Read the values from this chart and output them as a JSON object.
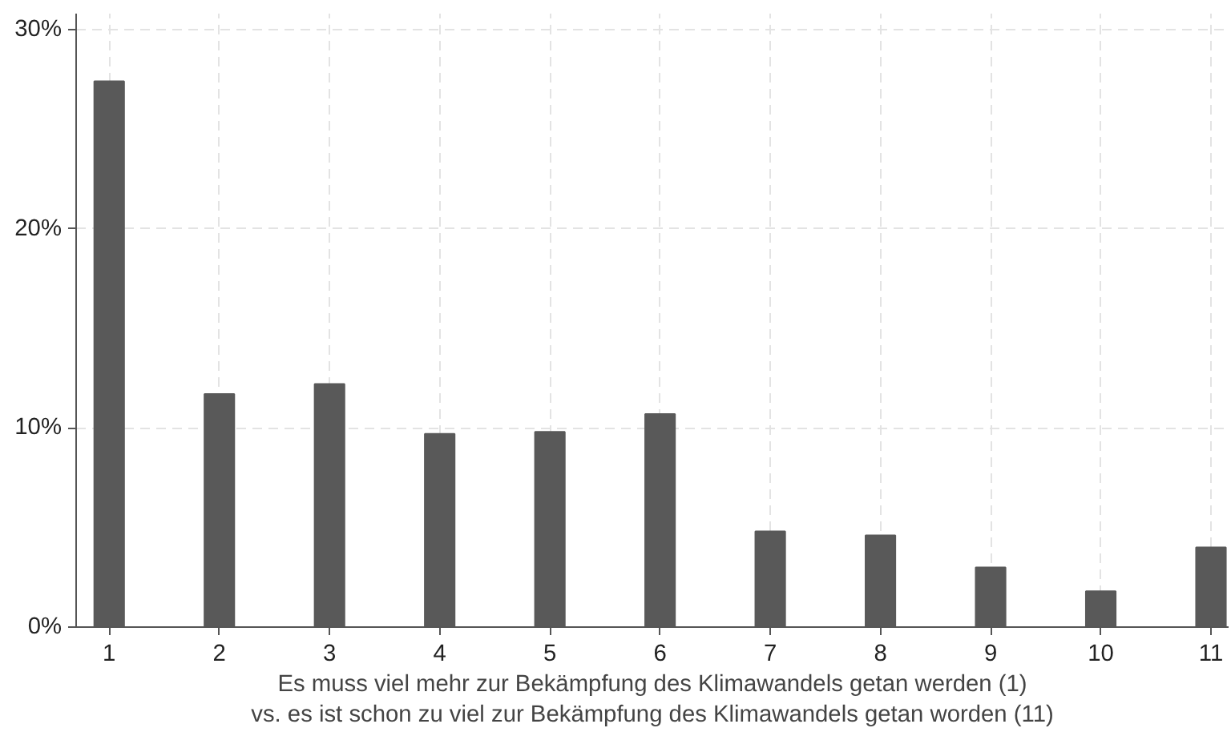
{
  "chart_data": {
    "type": "bar",
    "x": [
      1,
      2,
      3,
      4,
      5,
      6,
      7,
      8,
      9,
      10,
      11
    ],
    "values": [
      27.4,
      11.7,
      12.2,
      9.7,
      9.8,
      10.7,
      4.8,
      4.6,
      3.0,
      1.8,
      4.0
    ],
    "color": "#595959",
    "xlabel": "Es muss viel mehr zur Bekämpfung des Klimawandels getan werden (1)\nvs. es ist schon zu viel zur Bekämpfung des Klimawandels getan worden (11)",
    "xlim": [
      0.7,
      11.16
    ],
    "xticks": [
      1,
      2,
      3,
      4,
      5,
      6,
      7,
      8,
      9,
      10,
      11
    ],
    "ylim": [
      0,
      30.8
    ],
    "yticks": [
      {
        "value": 0,
        "label": "0%"
      },
      {
        "value": 10,
        "label": "10%"
      },
      {
        "value": 20,
        "label": "20%"
      },
      {
        "value": 30,
        "label": "30%"
      }
    ],
    "grid": true
  }
}
